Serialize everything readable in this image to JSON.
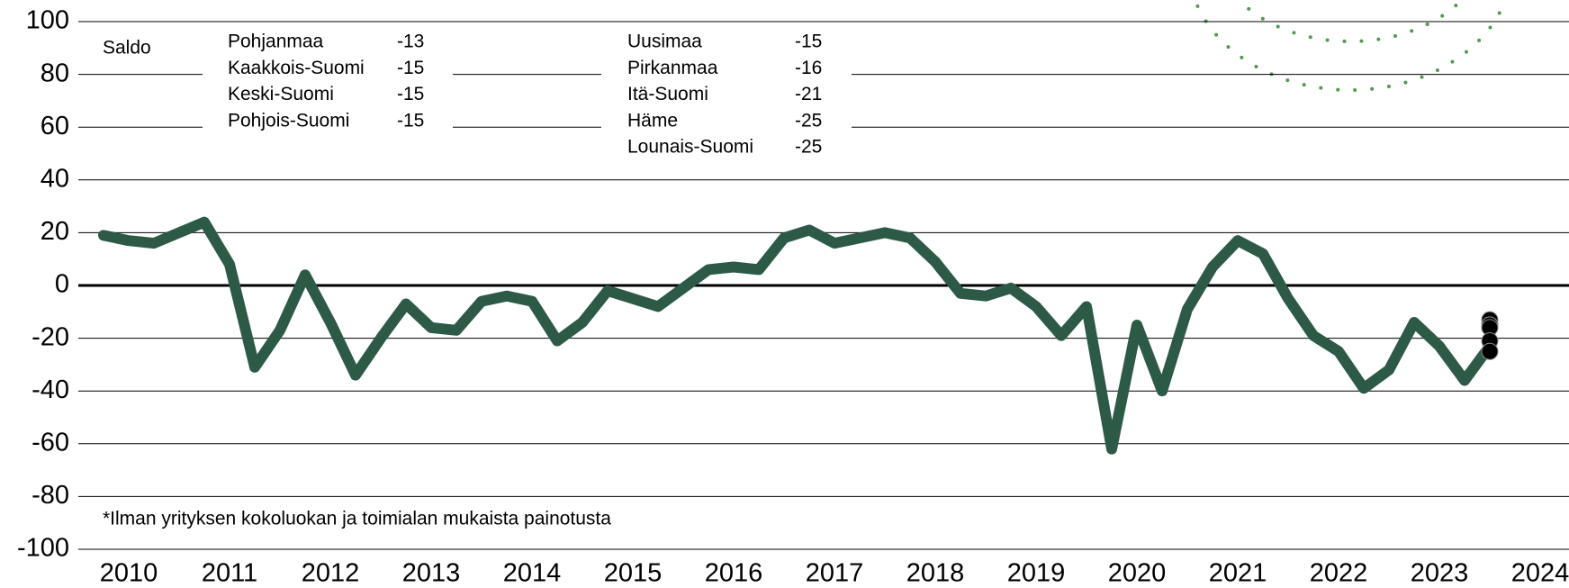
{
  "chart_data": {
    "type": "line",
    "ylabel": "Saldo",
    "footnote": "*Ilman yrityksen kokoluokan ja toimialan mukaista painotusta",
    "xlim": [
      2010,
      2025
    ],
    "xticks": [
      2010,
      2011,
      2012,
      2013,
      2014,
      2015,
      2016,
      2017,
      2018,
      2019,
      2020,
      2021,
      2022,
      2023,
      2024
    ],
    "ylim": [
      -100,
      100
    ],
    "yticks": [
      -100,
      -80,
      -60,
      -40,
      -20,
      0,
      20,
      40,
      60,
      80,
      100
    ],
    "grid": true,
    "x": [
      2010.25,
      2010.5,
      2010.75,
      2011,
      2011.25,
      2011.5,
      2011.75,
      2012,
      2012.25,
      2012.5,
      2012.75,
      2013,
      2013.25,
      2013.5,
      2013.75,
      2014,
      2014.25,
      2014.5,
      2014.75,
      2015,
      2015.25,
      2015.5,
      2015.75,
      2016,
      2016.25,
      2016.5,
      2016.75,
      2017,
      2017.25,
      2017.5,
      2017.75,
      2018,
      2018.25,
      2018.5,
      2018.75,
      2019,
      2019.25,
      2019.5,
      2019.75,
      2020,
      2020.25,
      2020.5,
      2020.75,
      2021,
      2021.25,
      2021.5,
      2021.75,
      2022,
      2022.25,
      2022.5,
      2022.75,
      2023,
      2023.25,
      2023.5,
      2023.75,
      2024
    ],
    "series": [
      {
        "color": "#2d5a47",
        "values": [
          19,
          17,
          16,
          20,
          24,
          8,
          -31,
          -17,
          4,
          -14,
          -34,
          -20,
          -7,
          -16,
          -17,
          -6,
          -4,
          -6,
          -21,
          -14,
          -2,
          -5,
          -8,
          -1,
          6,
          7,
          6,
          18,
          21,
          16,
          18,
          20,
          18,
          9,
          -3,
          -4,
          -1,
          -8,
          -19,
          -8,
          -62,
          -15,
          -40,
          -9,
          7,
          17,
          12,
          -5,
          -19,
          -25,
          -39,
          -32,
          -14,
          -23,
          -36,
          -23
        ]
      }
    ],
    "regions": {
      "color": "#000000",
      "names": [
        "Pohjanmaa",
        "Kaakkois-Suomi",
        "Keski-Suomi",
        "Pohjois-Suomi",
        "Uusimaa",
        "Pirkanmaa",
        "Itä-Suomi",
        "Häme",
        "Lounais-Suomi"
      ],
      "values": [
        -13,
        -15,
        -15,
        -15,
        -15,
        -16,
        -21,
        -25,
        -25
      ]
    }
  }
}
